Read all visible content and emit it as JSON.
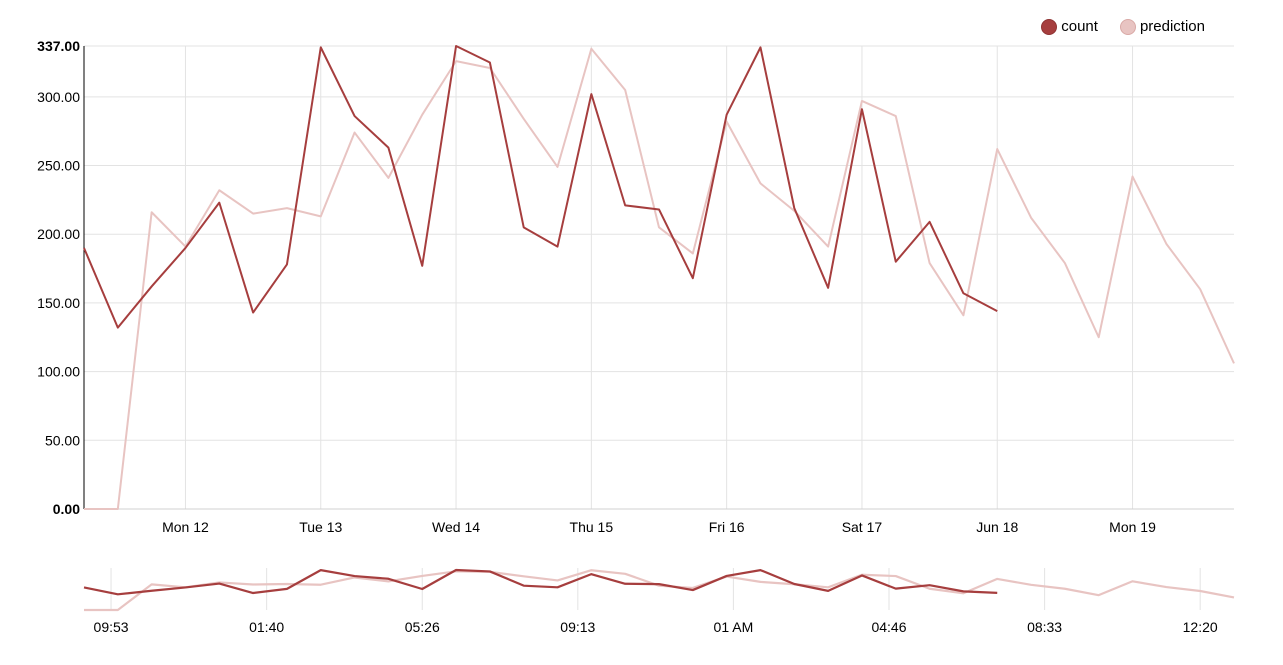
{
  "legend": {
    "items": [
      {
        "label": "count",
        "color": "#a63e3e"
      },
      {
        "label": "prediction",
        "color": "#e8c4c2"
      }
    ]
  },
  "chart_data": {
    "type": "line",
    "title": "",
    "xlabel": "",
    "ylabel": "",
    "ylim": [
      0,
      337
    ],
    "y_ticks": [
      {
        "value": 0,
        "label": "0.00"
      },
      {
        "value": 50,
        "label": "50.00"
      },
      {
        "value": 100,
        "label": "100.00"
      },
      {
        "value": 150,
        "label": "150.00"
      },
      {
        "value": 200,
        "label": "200.00"
      },
      {
        "value": 250,
        "label": "250.00"
      },
      {
        "value": 300,
        "label": "300.00"
      },
      {
        "value": 337,
        "label": "337.00"
      }
    ],
    "x_ticks": [
      {
        "index": 3,
        "label": "Mon 12"
      },
      {
        "index": 7,
        "label": "Tue 13"
      },
      {
        "index": 11,
        "label": "Wed 14"
      },
      {
        "index": 15,
        "label": "Thu 15"
      },
      {
        "index": 19,
        "label": "Fri 16"
      },
      {
        "index": 23,
        "label": "Sat 17"
      },
      {
        "index": 27,
        "label": "Jun 18"
      },
      {
        "index": 31,
        "label": "Mon 19"
      }
    ],
    "x_range": [
      0,
      34
    ],
    "grid": true,
    "legend_position": "top-right",
    "series": [
      {
        "name": "count",
        "color": "#a63e3e",
        "values": [
          190,
          132,
          162,
          190,
          223,
          143,
          178,
          336,
          286,
          263,
          177,
          337,
          325,
          205,
          191,
          302,
          221,
          218,
          168,
          287,
          336,
          219,
          161,
          291,
          180,
          209,
          157,
          144
        ]
      },
      {
        "name": "prediction",
        "color": "#e8c4c2",
        "values": [
          0,
          0,
          216,
          191,
          232,
          215,
          219,
          213,
          274,
          241,
          287,
          326,
          321,
          284,
          249,
          335,
          305,
          205,
          186,
          282,
          237,
          217,
          191,
          297,
          286,
          179,
          141,
          262,
          212,
          179,
          125,
          242,
          193,
          160,
          106
        ]
      }
    ],
    "navigator": {
      "x_ticks": [
        {
          "index": 0.8,
          "label": "09:53"
        },
        {
          "index": 5.4,
          "label": "01:40"
        },
        {
          "index": 10,
          "label": "05:26"
        },
        {
          "index": 14.6,
          "label": "09:13"
        },
        {
          "index": 19.2,
          "label": "01 AM"
        },
        {
          "index": 23.8,
          "label": "04:46"
        },
        {
          "index": 28.4,
          "label": "08:33"
        },
        {
          "index": 33,
          "label": "12:20"
        }
      ]
    }
  }
}
